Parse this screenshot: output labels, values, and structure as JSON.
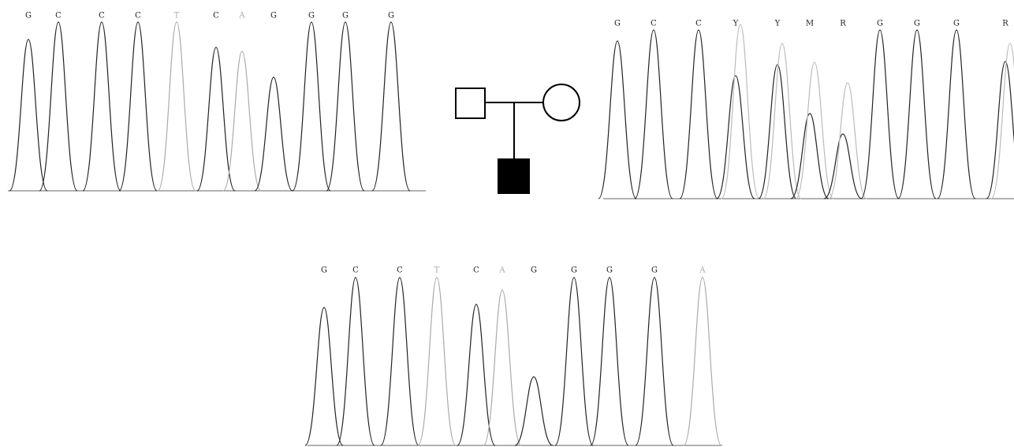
{
  "panels": [
    {
      "bases": [
        "G",
        "C",
        "C",
        "C",
        "T",
        "C",
        "A",
        "G",
        "G",
        "G",
        "G"
      ]
    },
    {
      "bases": [
        "G",
        "C",
        "C",
        "Y",
        "Y",
        "M",
        "R",
        "G",
        "G",
        "G",
        "R"
      ]
    },
    {
      "bases": [
        "G",
        "C",
        "C",
        "T",
        "C",
        "A",
        "G",
        "G",
        "G",
        "G",
        "A"
      ]
    }
  ]
}
